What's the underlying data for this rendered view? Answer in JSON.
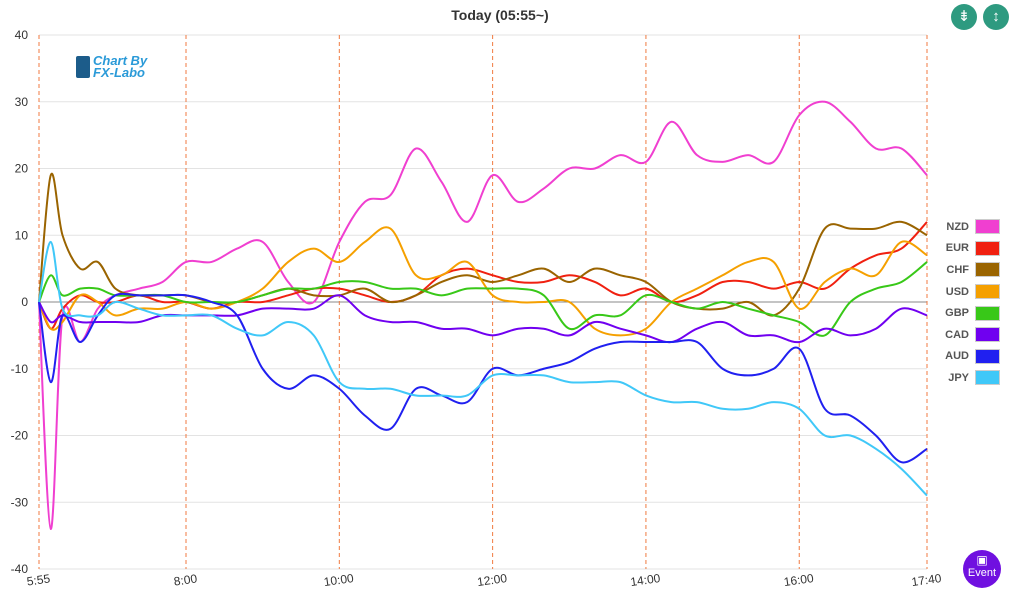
{
  "header": {
    "title": "Today  (05:55~)",
    "compress_icon": "compress-vertical-icon",
    "expand_icon": "expand-vertical-icon"
  },
  "logo": {
    "line1": "Chart By",
    "line2": "FX-Labo"
  },
  "event_button": {
    "label": "Event",
    "icon": "calendar-icon"
  },
  "chart_data": {
    "type": "line",
    "title": "Today  (05:55~)",
    "xlabel": "",
    "ylabel": "",
    "ylim": [
      -40,
      40
    ],
    "yticks": [
      40,
      30,
      20,
      10,
      0,
      -10,
      -20,
      -30,
      -40
    ],
    "xticks": [
      {
        "t": 355,
        "label": "5:55"
      },
      {
        "t": 480,
        "label": "8:00"
      },
      {
        "t": 600,
        "label": "10:00"
      },
      {
        "t": 720,
        "label": "12:00"
      },
      {
        "t": 840,
        "label": "14:00"
      },
      {
        "t": 960,
        "label": "16:00"
      },
      {
        "t": 1060,
        "label": "17:40"
      }
    ],
    "grid": true,
    "legend_position": "right",
    "x": [
      355,
      365,
      375,
      390,
      405,
      420,
      440,
      460,
      480,
      500,
      520,
      540,
      560,
      580,
      600,
      620,
      640,
      660,
      680,
      700,
      720,
      740,
      760,
      780,
      800,
      820,
      840,
      860,
      880,
      900,
      920,
      940,
      960,
      980,
      1000,
      1020,
      1040,
      1060
    ],
    "series": [
      {
        "name": "NZD",
        "color": "#f03fd0",
        "values": [
          0,
          -34,
          -2,
          -6,
          -1,
          1,
          2,
          3,
          6,
          6,
          8,
          9,
          3,
          0,
          9,
          15,
          16,
          23,
          18,
          12,
          19,
          15,
          17,
          20,
          20,
          22,
          21,
          27,
          22,
          21,
          22,
          21,
          28,
          30,
          27,
          23,
          23,
          19
        ]
      },
      {
        "name": "EUR",
        "color": "#f02010",
        "values": [
          0,
          -4,
          -1,
          1,
          0,
          0,
          1,
          0,
          0,
          -1,
          0,
          0,
          1,
          2,
          2,
          1,
          0,
          1,
          4,
          5,
          4,
          3,
          3,
          4,
          3,
          1,
          2,
          0,
          1,
          3,
          3,
          2,
          3,
          2,
          5,
          7,
          8,
          12
        ]
      },
      {
        "name": "CHF",
        "color": "#9a6400",
        "values": [
          0,
          19,
          10,
          5,
          6,
          2,
          1,
          1,
          1,
          0,
          0,
          1,
          2,
          1,
          1,
          2,
          0,
          1,
          3,
          4,
          3,
          4,
          5,
          3,
          5,
          4,
          3,
          0,
          -1,
          -1,
          0,
          -2,
          2,
          11,
          11,
          11,
          12,
          10
        ]
      },
      {
        "name": "USD",
        "color": "#f5a000",
        "values": [
          0,
          -4,
          -3,
          1,
          0,
          -2,
          -1,
          -1,
          0,
          -1,
          0,
          2,
          6,
          8,
          6,
          9,
          11,
          4,
          4,
          6,
          1,
          0,
          0,
          0,
          -4,
          -5,
          -4,
          0,
          2,
          4,
          6,
          6,
          -1,
          3,
          5,
          4,
          9,
          7
        ]
      },
      {
        "name": "GBP",
        "color": "#38c818",
        "values": [
          0,
          4,
          1,
          2,
          2,
          1,
          1,
          1,
          0,
          0,
          0,
          1,
          2,
          2,
          3,
          3,
          2,
          2,
          1,
          2,
          2,
          2,
          1,
          -4,
          -2,
          -2,
          1,
          0,
          -1,
          0,
          -1,
          -2,
          -3,
          -5,
          0,
          2,
          3,
          6
        ]
      },
      {
        "name": "CAD",
        "color": "#7000f0",
        "values": [
          0,
          -3,
          -2,
          -3,
          -3,
          -3,
          -3,
          -2,
          -2,
          -2,
          -2,
          -1,
          -1,
          -1,
          1,
          -2,
          -3,
          -3,
          -4,
          -4,
          -5,
          -4,
          -4,
          -5,
          -3,
          -4,
          -5,
          -6,
          -4,
          -3,
          -5,
          -5,
          -6,
          -4,
          -5,
          -4,
          -1,
          -2
        ]
      },
      {
        "name": "AUD",
        "color": "#2020f0",
        "values": [
          0,
          -12,
          -2,
          -6,
          -2,
          1,
          1,
          1,
          1,
          0,
          -2,
          -10,
          -13,
          -11,
          -13,
          -17,
          -19,
          -13,
          -14,
          -15,
          -10,
          -11,
          -10,
          -9,
          -7,
          -6,
          -6,
          -6,
          -6,
          -10,
          -11,
          -10,
          -7,
          -16,
          -17,
          -20,
          -24,
          -22
        ]
      },
      {
        "name": "JPY",
        "color": "#40c8f8",
        "values": [
          0,
          9,
          -1,
          -2,
          -2,
          0,
          -1,
          -2,
          -2,
          -2,
          -4,
          -5,
          -3,
          -5,
          -12,
          -13,
          -13,
          -14,
          -14,
          -14,
          -11,
          -11,
          -11,
          -12,
          -12,
          -12,
          -14,
          -15,
          -15,
          -16,
          -16,
          -15,
          -16,
          -20,
          -20,
          -22,
          -25,
          -29
        ]
      }
    ]
  }
}
